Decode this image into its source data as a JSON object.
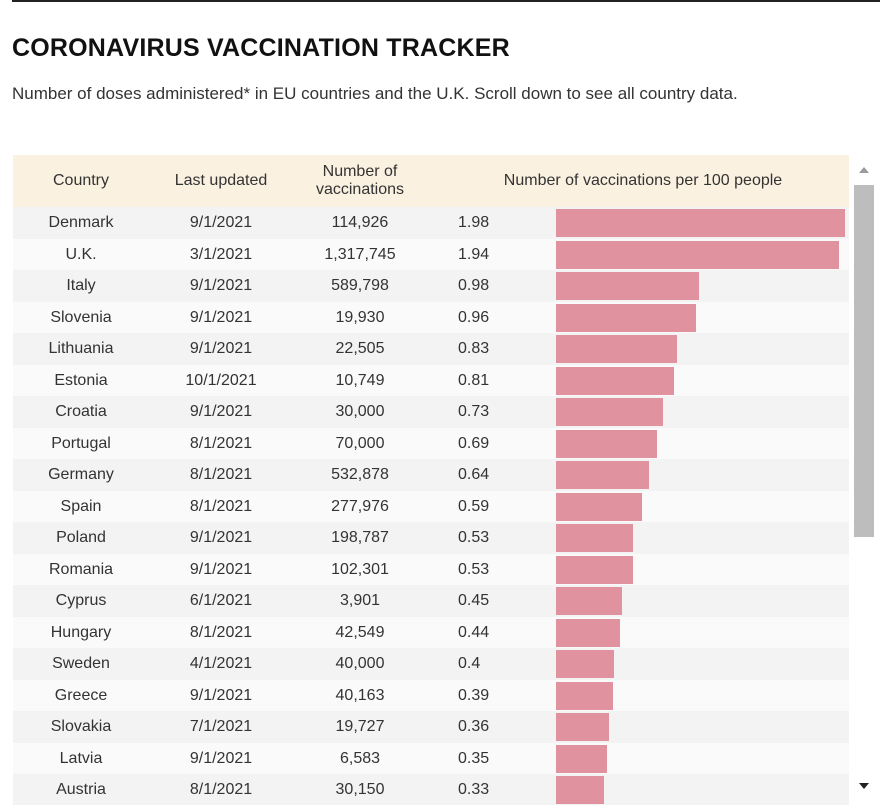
{
  "title": "CORONAVIRUS VACCINATION TRACKER",
  "subtitle": "Number of doses administered* in EU countries and the U.K. Scroll down to see all country data.",
  "table": {
    "headers": {
      "country": "Country",
      "last_updated": "Last updated",
      "number_of_vaccinations": "Number of vaccinations",
      "per_100": "Number of vaccinations per 100 people"
    }
  },
  "colors": {
    "bar": "#e0939f",
    "header_bg": "#fbf1e1"
  },
  "chart_data": {
    "type": "bar",
    "orientation": "horizontal",
    "title": "Number of vaccinations per 100 people",
    "xlim": [
      0,
      1.98
    ],
    "rows": [
      {
        "country": "Denmark",
        "updated": "9/1/2021",
        "number": "114,926",
        "value_label": "1.98",
        "value": 1.98
      },
      {
        "country": "U.K.",
        "updated": "3/1/2021",
        "number": "1,317,745",
        "value_label": "1.94",
        "value": 1.94
      },
      {
        "country": "Italy",
        "updated": "9/1/2021",
        "number": "589,798",
        "value_label": "0.98",
        "value": 0.98
      },
      {
        "country": "Slovenia",
        "updated": "9/1/2021",
        "number": "19,930",
        "value_label": "0.96",
        "value": 0.96
      },
      {
        "country": "Lithuania",
        "updated": "9/1/2021",
        "number": "22,505",
        "value_label": "0.83",
        "value": 0.83
      },
      {
        "country": "Estonia",
        "updated": "10/1/2021",
        "number": "10,749",
        "value_label": "0.81",
        "value": 0.81
      },
      {
        "country": "Croatia",
        "updated": "9/1/2021",
        "number": "30,000",
        "value_label": "0.73",
        "value": 0.73
      },
      {
        "country": "Portugal",
        "updated": "8/1/2021",
        "number": "70,000",
        "value_label": "0.69",
        "value": 0.69
      },
      {
        "country": "Germany",
        "updated": "8/1/2021",
        "number": "532,878",
        "value_label": "0.64",
        "value": 0.64
      },
      {
        "country": "Spain",
        "updated": "8/1/2021",
        "number": "277,976",
        "value_label": "0.59",
        "value": 0.59
      },
      {
        "country": "Poland",
        "updated": "9/1/2021",
        "number": "198,787",
        "value_label": "0.53",
        "value": 0.53
      },
      {
        "country": "Romania",
        "updated": "9/1/2021",
        "number": "102,301",
        "value_label": "0.53",
        "value": 0.53
      },
      {
        "country": "Cyprus",
        "updated": "6/1/2021",
        "number": "3,901",
        "value_label": "0.45",
        "value": 0.45
      },
      {
        "country": "Hungary",
        "updated": "8/1/2021",
        "number": "42,549",
        "value_label": "0.44",
        "value": 0.44
      },
      {
        "country": "Sweden",
        "updated": "4/1/2021",
        "number": "40,000",
        "value_label": "0.4",
        "value": 0.4
      },
      {
        "country": "Greece",
        "updated": "9/1/2021",
        "number": "40,163",
        "value_label": "0.39",
        "value": 0.39
      },
      {
        "country": "Slovakia",
        "updated": "7/1/2021",
        "number": "19,727",
        "value_label": "0.36",
        "value": 0.36
      },
      {
        "country": "Latvia",
        "updated": "9/1/2021",
        "number": "6,583",
        "value_label": "0.35",
        "value": 0.35
      },
      {
        "country": "Austria",
        "updated": "8/1/2021",
        "number": "30,150",
        "value_label": "0.33",
        "value": 0.33
      }
    ]
  }
}
